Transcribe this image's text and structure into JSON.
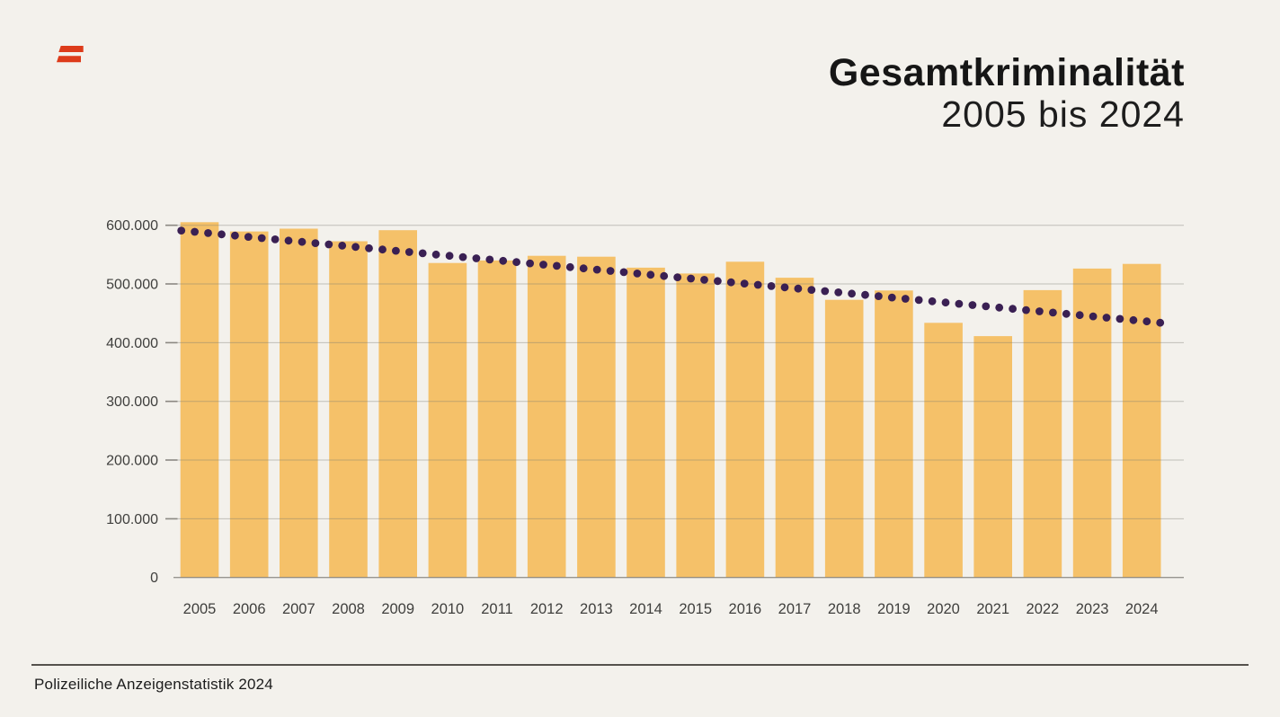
{
  "logo": {
    "name": "austria-flag-logo",
    "color": "#dd3b1a"
  },
  "header": {
    "title": "Gesamtkriminalität",
    "subtitle": "2005 bis 2024"
  },
  "footer": {
    "source": "Polizeiliche Anzeigenstatistik 2024"
  },
  "chart_data": {
    "type": "bar",
    "title": "Gesamtkriminalität 2005 bis 2024",
    "categories": [
      "2005",
      "2006",
      "2007",
      "2008",
      "2009",
      "2010",
      "2011",
      "2012",
      "2013",
      "2014",
      "2015",
      "2016",
      "2017",
      "2018",
      "2019",
      "2020",
      "2021",
      "2022",
      "2023",
      "2024"
    ],
    "values": [
      605272,
      589495,
      594240,
      572695,
      591597,
      535745,
      540007,
      548027,
      546396,
      527692,
      517870,
      537792,
      510536,
      472981,
      488912,
      433811,
      411175,
      489459,
      526291,
      534193
    ],
    "xlabel": "",
    "ylabel": "",
    "ylim": [
      0,
      600000
    ],
    "ytick_interval": 100000,
    "ytick_labels": [
      "0",
      "100.000",
      "200.000",
      "300.000",
      "400.000",
      "500.000",
      "600.000"
    ],
    "grid": "horizontal",
    "legend": "none",
    "bar_color": "#f5c169",
    "gridline_color": "#787670",
    "axis_label_color": "#3f3f3d",
    "trend": {
      "type": "dotted-linear",
      "start_value": 591000,
      "end_value": 434000,
      "dot_color": "#3a2053"
    }
  }
}
